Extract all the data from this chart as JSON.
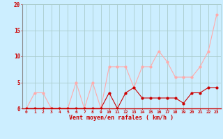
{
  "hours": [
    0,
    1,
    2,
    3,
    4,
    5,
    6,
    7,
    8,
    9,
    10,
    11,
    12,
    13,
    14,
    15,
    16,
    17,
    18,
    19,
    20,
    21,
    22,
    23
  ],
  "wind_avg": [
    0,
    0,
    0,
    0,
    0,
    0,
    0,
    0,
    0,
    0,
    3,
    0,
    3,
    4,
    2,
    2,
    2,
    2,
    2,
    1,
    3,
    3,
    4,
    4
  ],
  "wind_gust": [
    0,
    3,
    3,
    0,
    0,
    0,
    5,
    0,
    5,
    0,
    8,
    8,
    8,
    4,
    8,
    8,
    11,
    9,
    6,
    6,
    6,
    8,
    11,
    18
  ],
  "avg_color": "#cc0000",
  "gust_color": "#ffaaaa",
  "bg_color": "#cceeff",
  "grid_color": "#aacccc",
  "xlabel": "Vent moyen/en rafales ( km/h )",
  "ylim": [
    0,
    20
  ],
  "yticks": [
    0,
    5,
    10,
    15,
    20
  ],
  "xticks": [
    0,
    1,
    2,
    3,
    4,
    5,
    6,
    7,
    8,
    9,
    10,
    11,
    12,
    13,
    14,
    15,
    16,
    17,
    18,
    19,
    20,
    21,
    22,
    23
  ]
}
